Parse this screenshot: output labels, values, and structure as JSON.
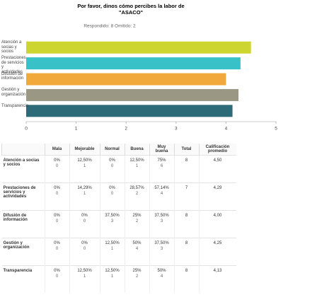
{
  "chart_data": {
    "type": "bar",
    "orientation": "horizontal",
    "title": [
      "Por favor, dinos cómo percibes la labor de",
      "\"ASACO\""
    ],
    "subtitle": "Respondido: 8   Omitido: 2",
    "categories": [
      "Atención a socias y socios",
      "Prestaciones de servicios y actividades",
      "Difusión de información",
      "Gestión y organización",
      "Transparencia"
    ],
    "values": [
      4.5,
      4.29,
      4.0,
      4.25,
      4.13
    ],
    "colors": [
      "#cdd531",
      "#38c1c6",
      "#f2a93b",
      "#9a9885",
      "#2e6b78"
    ],
    "xlim": [
      0,
      5
    ],
    "xticks": [
      0,
      1,
      2,
      3,
      4,
      5
    ],
    "grid": false
  },
  "table": {
    "headers": [
      "Mala",
      "Mejorable",
      "Normal",
      "Buena",
      "Muy buena",
      "Total",
      "Calificación promedio"
    ],
    "rows": [
      {
        "label": "Atención a socias y socios",
        "cells": [
          [
            "0%",
            0
          ],
          [
            "12,50%",
            1
          ],
          [
            "0%",
            0
          ],
          [
            "12,50%",
            1
          ],
          [
            "75%",
            6
          ]
        ],
        "total": 8,
        "avg": "4,50"
      },
      {
        "label": "Prestaciones de servicios y actividades",
        "cells": [
          [
            "0%",
            0
          ],
          [
            "14,29%",
            1
          ],
          [
            "0%",
            0
          ],
          [
            "28,57%",
            2
          ],
          [
            "57,14%",
            4
          ]
        ],
        "total": 7,
        "avg": "4,29"
      },
      {
        "label": "Difusión de información",
        "cells": [
          [
            "0%",
            0
          ],
          [
            "0%",
            0
          ],
          [
            "37,50%",
            3
          ],
          [
            "25%",
            2
          ],
          [
            "37,50%",
            3
          ]
        ],
        "total": 8,
        "avg": "4,00"
      },
      {
        "label": "Gestión y organización",
        "cells": [
          [
            "0%",
            0
          ],
          [
            "0%",
            0
          ],
          [
            "12,50%",
            1
          ],
          [
            "50%",
            4
          ],
          [
            "37,50%",
            3
          ]
        ],
        "total": 8,
        "avg": "4,25"
      },
      {
        "label": "Transparencia",
        "cells": [
          [
            "0%",
            0
          ],
          [
            "12,50%",
            1
          ],
          [
            "12,50%",
            1
          ],
          [
            "25%",
            2
          ],
          [
            "50%",
            4
          ]
        ],
        "total": 8,
        "avg": "4,13"
      }
    ]
  }
}
